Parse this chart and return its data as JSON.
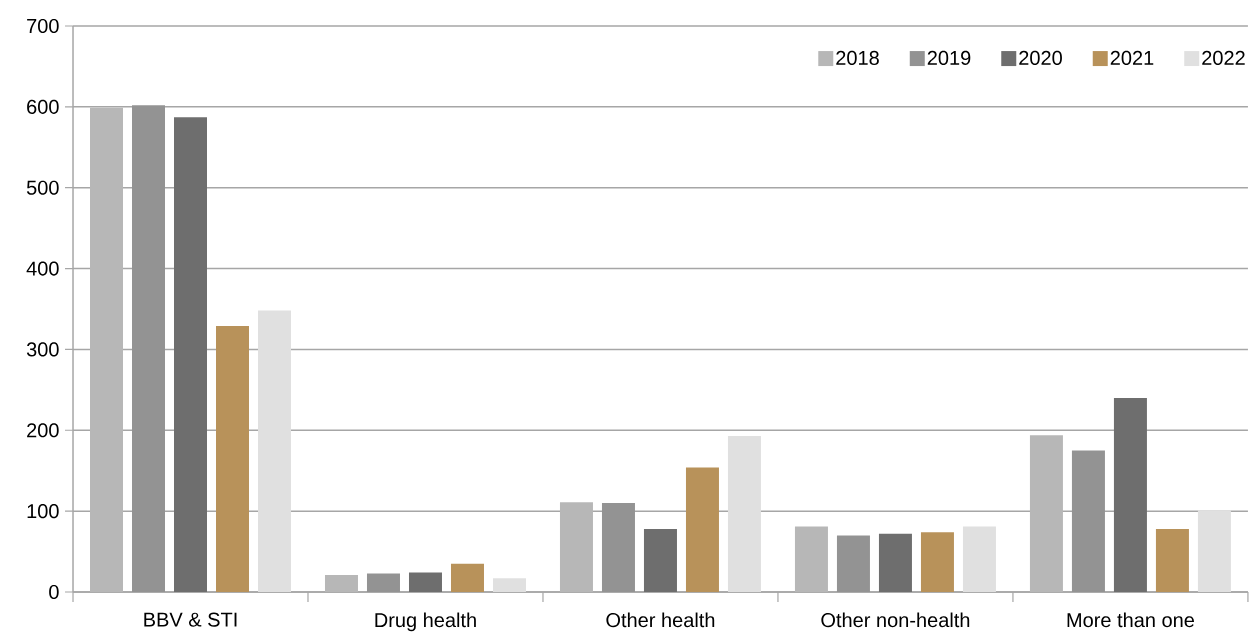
{
  "chart_data": {
    "type": "bar",
    "categories": [
      "BBV & STI",
      "Drug health",
      "Other health",
      "Other non-health",
      "More than one"
    ],
    "series": [
      {
        "name": "2018",
        "color": "#b7b7b7",
        "values": [
          599,
          21,
          111,
          81,
          194
        ]
      },
      {
        "name": "2019",
        "color": "#939393",
        "values": [
          602,
          23,
          110,
          70,
          175
        ]
      },
      {
        "name": "2020",
        "color": "#6e6e6e",
        "values": [
          587,
          24,
          78,
          72,
          240
        ]
      },
      {
        "name": "2021",
        "color": "#b8925a",
        "values": [
          329,
          35,
          154,
          74,
          78
        ]
      },
      {
        "name": "2022",
        "color": "#e0e0e0",
        "values": [
          348,
          17,
          193,
          81,
          101
        ]
      }
    ],
    "ylim": [
      0,
      700
    ],
    "yticks": [
      0,
      100,
      200,
      300,
      400,
      500,
      600,
      700
    ],
    "grid": "y",
    "legend": "top right"
  }
}
